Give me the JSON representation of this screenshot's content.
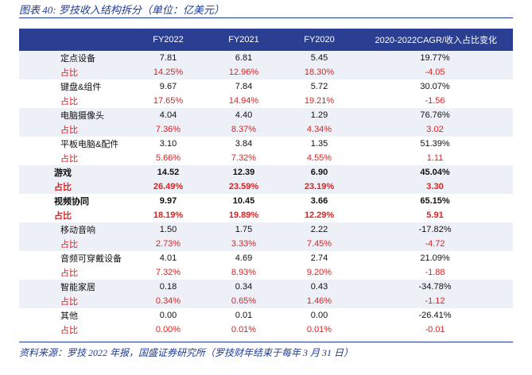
{
  "title": "图表 40:  罗技收入结构拆分（单位：亿美元）",
  "columns": [
    "",
    "FY2022",
    "FY2021",
    "FY2020",
    "2020-2022CAGR/收入占比变化"
  ],
  "rows": [
    {
      "label": "定点设备",
      "fy2022": "7.81",
      "fy2021": "6.81",
      "fy2020": "5.45",
      "cagr": "19.77%",
      "kind": "value",
      "bold": false
    },
    {
      "label": "占比",
      "fy2022": "14.25%",
      "fy2021": "12.96%",
      "fy2020": "18.30%",
      "cagr": "-4.05",
      "kind": "share",
      "bold": false
    },
    {
      "label": "键盘&组件",
      "fy2022": "9.67",
      "fy2021": "7.84",
      "fy2020": "5.72",
      "cagr": "30.07%",
      "kind": "value",
      "bold": false
    },
    {
      "label": "占比",
      "fy2022": "17.65%",
      "fy2021": "14.94%",
      "fy2020": "19.21%",
      "cagr": "-1.56",
      "kind": "share",
      "bold": false
    },
    {
      "label": "电脑摄像头",
      "fy2022": "4.04",
      "fy2021": "4.40",
      "fy2020": "1.29",
      "cagr": "76.76%",
      "kind": "value",
      "bold": false
    },
    {
      "label": "占比",
      "fy2022": "7.36%",
      "fy2021": "8.37%",
      "fy2020": "4.34%",
      "cagr": "3.02",
      "kind": "share",
      "bold": false
    },
    {
      "label": "平板电脑&配件",
      "fy2022": "3.10",
      "fy2021": "3.84",
      "fy2020": "1.35",
      "cagr": "51.39%",
      "kind": "value",
      "bold": false
    },
    {
      "label": "占比",
      "fy2022": "5.66%",
      "fy2021": "7.32%",
      "fy2020": "4.55%",
      "cagr": "1.11",
      "kind": "share",
      "bold": false
    },
    {
      "label": "游戏",
      "fy2022": "14.52",
      "fy2021": "12.39",
      "fy2020": "6.90",
      "cagr": "45.04%",
      "kind": "value",
      "bold": true
    },
    {
      "label": "占比",
      "fy2022": "26.49%",
      "fy2021": "23.59%",
      "fy2020": "23.19%",
      "cagr": "3.30",
      "kind": "share",
      "bold": true
    },
    {
      "label": "视频协同",
      "fy2022": "9.97",
      "fy2021": "10.45",
      "fy2020": "3.66",
      "cagr": "65.15%",
      "kind": "value",
      "bold": true
    },
    {
      "label": "占比",
      "fy2022": "18.19%",
      "fy2021": "19.89%",
      "fy2020": "12.29%",
      "cagr": "5.91",
      "kind": "share",
      "bold": true
    },
    {
      "label": "移动音响",
      "fy2022": "1.50",
      "fy2021": "1.75",
      "fy2020": "2.22",
      "cagr": "-17.82%",
      "kind": "value",
      "bold": false
    },
    {
      "label": "占比",
      "fy2022": "2.73%",
      "fy2021": "3.33%",
      "fy2020": "7.45%",
      "cagr": "-4.72",
      "kind": "share",
      "bold": false
    },
    {
      "label": "音频可穿戴设备",
      "fy2022": "4.01",
      "fy2021": "4.69",
      "fy2020": "2.74",
      "cagr": "21.09%",
      "kind": "value",
      "bold": false
    },
    {
      "label": "占比",
      "fy2022": "7.32%",
      "fy2021": "8.93%",
      "fy2020": "9.20%",
      "cagr": "-1.88",
      "kind": "share",
      "bold": false
    },
    {
      "label": "智能家居",
      "fy2022": "0.18",
      "fy2021": "0.34",
      "fy2020": "0.43",
      "cagr": "-34.78%",
      "kind": "value",
      "bold": false
    },
    {
      "label": "占比",
      "fy2022": "0.34%",
      "fy2021": "0.65%",
      "fy2020": "1.46%",
      "cagr": "-1.12",
      "kind": "share",
      "bold": false
    },
    {
      "label": "其他",
      "fy2022": "0.00",
      "fy2021": "0.01",
      "fy2020": "0.00",
      "cagr": "-26.41%",
      "kind": "value",
      "bold": false
    },
    {
      "label": "占比",
      "fy2022": "0.00%",
      "fy2021": "0.01%",
      "fy2020": "0.01%",
      "cagr": "-0.01",
      "kind": "share",
      "bold": false
    }
  ],
  "source": "资料来源：罗技 2022 年报，国盛证券研究所（罗技财年结束于每年 3 月 31 日）",
  "colors": {
    "header_bg": "#2a3e92",
    "share_text": "#e02020",
    "stripe": "#eef0f8",
    "title_text": "#1f3a93"
  }
}
